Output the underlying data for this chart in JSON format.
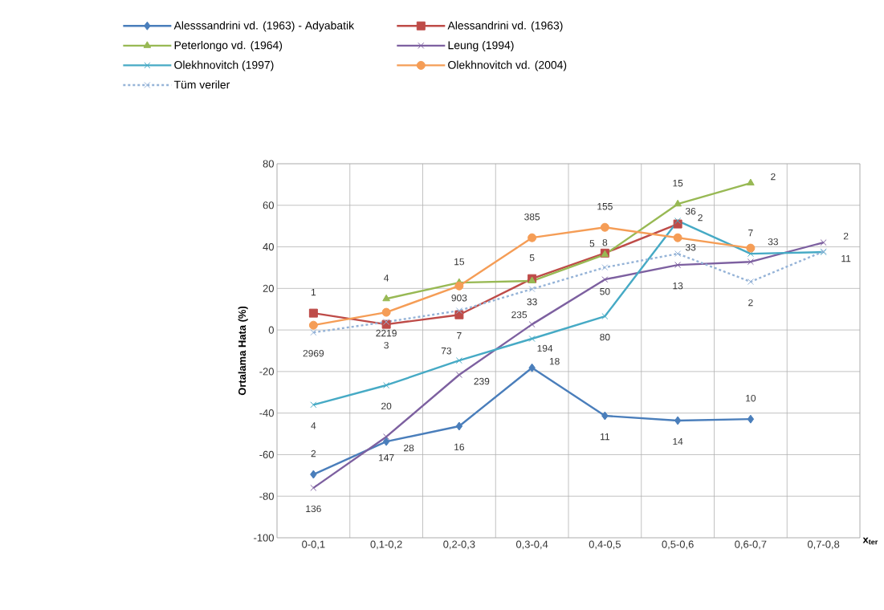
{
  "chart_data": {
    "type": "line",
    "xlabel": "x$_{ter}$",
    "ylabel": "Ortalama Hata (%)",
    "categories": [
      "0-0,1",
      "0,1-0,2",
      "0,2-0,3",
      "0,3-0,4",
      "0,4-0,5",
      "0,5-0,6",
      "0,6-0,7",
      "0,7-0,8"
    ],
    "ylim": [
      -100,
      80
    ],
    "yticks": [
      -100,
      -80,
      -60,
      -40,
      -20,
      0,
      20,
      40,
      60,
      80
    ],
    "grid": true,
    "legend": "top",
    "series": [
      {
        "name": "Alesssandrini vd. (1963) - Adyabatik",
        "color": "#4a7ebb",
        "marker": "diamond",
        "line_style": "solid",
        "values": [
          -69.5,
          -53.7,
          -46.3,
          -18.2,
          -41.3,
          -43.6,
          -42.9,
          null
        ]
      },
      {
        "name": "Alessandrini vd. (1963)",
        "color": "#be4b48",
        "marker": "square",
        "line_style": "solid",
        "values": [
          8.1,
          2.7,
          7.3,
          24.7,
          37,
          51,
          null,
          null
        ]
      },
      {
        "name": "Peterlongo vd. (1964)",
        "color": "#98b954",
        "marker": "triangle",
        "line_style": "solid",
        "values": [
          null,
          15,
          22.8,
          23.6,
          36.3,
          60.6,
          70.7,
          null
        ]
      },
      {
        "name": "Leung (1994)",
        "color": "#7d60a0",
        "marker": "cross",
        "line_style": "solid",
        "values": [
          -76,
          -51.4,
          -21.6,
          2.7,
          24.3,
          31.3,
          32.8,
          42.1
        ]
      },
      {
        "name": "Olekhnovitch (1997)",
        "color": "#46aac5",
        "marker": "cross",
        "line_style": "solid",
        "values": [
          -36,
          -26.6,
          -14.7,
          -4.2,
          6.6,
          52.5,
          36.7,
          37.5
        ]
      },
      {
        "name": "Olekhnovitch vd. (2004)",
        "color": "#f59d56",
        "marker": "circle",
        "line_style": "solid",
        "values": [
          2.3,
          8.5,
          21.2,
          44.4,
          49.4,
          44.4,
          39.4,
          null
        ]
      },
      {
        "name": "Tüm veriler",
        "color": "#95b3d7",
        "marker": "cross",
        "line_style": "dashed",
        "values": [
          -1.2,
          3.9,
          9.3,
          19.7,
          30.1,
          36.7,
          23.2,
          37.8
        ]
      }
    ],
    "annotations": [
      {
        "text": "1",
        "x": "0-0,1",
        "y": 8.1
      },
      {
        "text": "2969",
        "x": "0-0,1",
        "y": -1.2
      },
      {
        "text": "4",
        "x": "0-0,1",
        "y": -36
      },
      {
        "text": "2",
        "x": "0-0,1",
        "y": -69.5
      },
      {
        "text": "136",
        "x": "0-0,1",
        "y": -76
      },
      {
        "text": "4",
        "x": "0,1-0,2",
        "y": 15
      },
      {
        "text": "2219",
        "x": "0,1-0,2",
        "y": 8.5
      },
      {
        "text": "3",
        "x": "0,1-0,2",
        "y": 2.7
      },
      {
        "text": "20",
        "x": "0,1-0,2",
        "y": -26.6
      },
      {
        "text": "147",
        "x": "0,1-0,2",
        "y": -51.4
      },
      {
        "text": "28",
        "x": "0,1-0,2",
        "y": -53.7
      },
      {
        "text": "15",
        "x": "0,2-0,3",
        "y": 22.8
      },
      {
        "text": "903",
        "x": "0,2-0,3",
        "y": 21.2
      },
      {
        "text": "7",
        "x": "0,2-0,3",
        "y": 7.3
      },
      {
        "text": "73",
        "x": "0,2-0,3",
        "y": -14.7
      },
      {
        "text": "239",
        "x": "0,2-0,3",
        "y": -21.6
      },
      {
        "text": "16",
        "x": "0,2-0,3",
        "y": -46.3
      },
      {
        "text": "385",
        "x": "0,3-0,4",
        "y": 44.4
      },
      {
        "text": "5",
        "x": "0,3-0,4",
        "y": 24.7
      },
      {
        "text": "33",
        "x": "0,3-0,4",
        "y": 23.6
      },
      {
        "text": "235",
        "x": "0,3-0,4",
        "y": 2.7
      },
      {
        "text": "194",
        "x": "0,3-0,4",
        "y": -4.2
      },
      {
        "text": "18",
        "x": "0,3-0,4",
        "y": -18.2
      },
      {
        "text": "155",
        "x": "0,4-0,5",
        "y": 49.4
      },
      {
        "text": "5",
        "x": "0,4-0,5",
        "y": 37
      },
      {
        "text": "8",
        "x": "0,4-0,5",
        "y": 36.3
      },
      {
        "text": "50",
        "x": "0,4-0,5",
        "y": 24.3
      },
      {
        "text": "80",
        "x": "0,4-0,5",
        "y": 6.6
      },
      {
        "text": "11",
        "x": "0,4-0,5",
        "y": -41.3
      },
      {
        "text": "15",
        "x": "0,5-0,6",
        "y": 60.6
      },
      {
        "text": "2",
        "x": "0,5-0,6",
        "y": 51
      },
      {
        "text": "36",
        "x": "0,5-0,6",
        "y": 52.5
      },
      {
        "text": "33",
        "x": "0,5-0,6",
        "y": 44.4
      },
      {
        "text": "13",
        "x": "0,5-0,6",
        "y": 31.3
      },
      {
        "text": "14",
        "x": "0,5-0,6",
        "y": -43.6
      },
      {
        "text": "2",
        "x": "0,6-0,7",
        "y": 70.7
      },
      {
        "text": "7",
        "x": "0,6-0,7",
        "y": 36.7
      },
      {
        "text": "33",
        "x": "0,6-0,7",
        "y": 39.4
      },
      {
        "text": "2",
        "x": "0,6-0,7",
        "y": 23.2
      },
      {
        "text": "10",
        "x": "0,6-0,7",
        "y": -42.9
      },
      {
        "text": "2",
        "x": "0,7-0,8",
        "y": 42.1
      },
      {
        "text": "11",
        "x": "0,7-0,8",
        "y": 37.5
      }
    ]
  }
}
